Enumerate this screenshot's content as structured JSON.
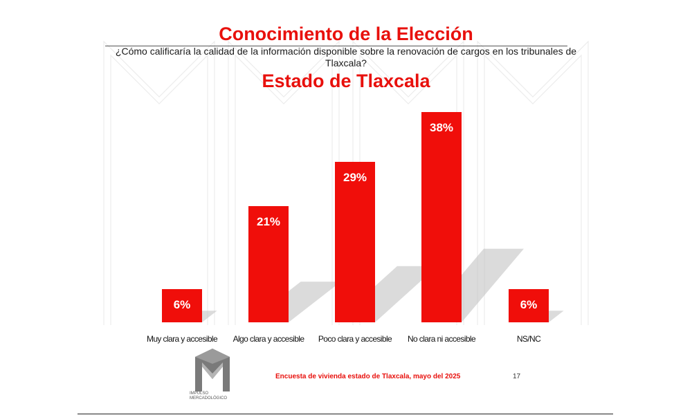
{
  "header": {
    "title": "Conocimiento de la Elección",
    "question": "¿Cómo calificaría la calidad de la información disponible sobre la renovación de cargos en los tribunales de Tlaxcala?",
    "subtitle": "Estado de Tlaxcala"
  },
  "chart_data": {
    "type": "bar",
    "title": "Conocimiento de la Elección",
    "subtitle": "Estado de Tlaxcala",
    "categories": [
      "Muy clara y accesible",
      "Algo clara y accesible",
      "Poco clara y accesible",
      "No clara ni accesible",
      "NS/NC"
    ],
    "values": [
      6,
      21,
      29,
      38,
      6
    ],
    "value_labels": [
      "6%",
      "21%",
      "29%",
      "38%",
      "6%"
    ],
    "unit": "%",
    "ylim": [
      0,
      40
    ],
    "grid": false,
    "legend": "none",
    "bar_color": "#f00e0a"
  },
  "footer": {
    "source": "Encuesta de vivienda estado de Tlaxcala, mayo   del 2025",
    "page_number": "17",
    "logo_text_line1": "IMPULSO",
    "logo_text_line2": "MERCADOLÓGICO"
  },
  "colors": {
    "accent": "#e8100c",
    "bar": "#f00e0a",
    "shadow": "#bdbdbd"
  }
}
